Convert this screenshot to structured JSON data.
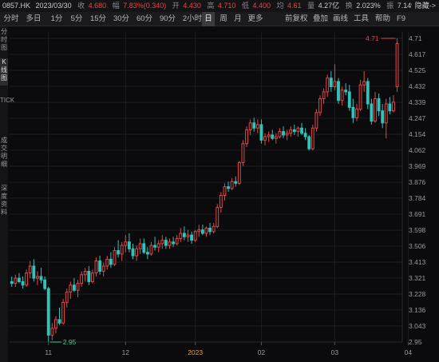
{
  "header": {
    "code": "0857.HK",
    "date": "2023/03/30",
    "close_label": "收",
    "close_value": "4.680",
    "change_label": "幅",
    "change_value": "7.83%(0.340)",
    "open_label": "开",
    "open_value": "4.430",
    "high_label": "高",
    "high_value": "4.710",
    "low_label": "低",
    "low_value": "4.400",
    "avg_label": "均",
    "avg_value": "4.61",
    "volume_label": "量",
    "volume_value": "4.27亿",
    "turnover_label": "换",
    "turnover_value": "2.023%",
    "amplitude_label": "振",
    "amplitude_value": "7.14%",
    "hide_label": "隐藏->"
  },
  "tabs": [
    "分时",
    "多日",
    "1分",
    "5分",
    "15分",
    "30分",
    "60分",
    "90分",
    "2小时",
    "日",
    "周",
    "月",
    "更多"
  ],
  "active_tab": "日",
  "tools": [
    "前复权",
    "叠加",
    "画线",
    "工具",
    "帮助",
    "F9"
  ],
  "sidebar": {
    "items": [
      "分时图",
      "K线图",
      "TICK",
      "成交明细",
      "深度资料"
    ]
  },
  "colors": {
    "up": "#e04848",
    "down": "#2fc4b9",
    "grid": "#1c1c20",
    "low_marker": "#3ecf8e"
  },
  "chart_data": {
    "type": "candlestick",
    "title": "",
    "xlabel": "",
    "ylabel": "",
    "ylim": [
      2.9,
      4.75
    ],
    "y_ticks": [
      "4.71",
      "4.617",
      "4.525",
      "4.432",
      "4.339",
      "4.247",
      "4.154",
      "4.062",
      "3.969",
      "3.876",
      "3.784",
      "3.691",
      "3.598",
      "3.506",
      "3.413",
      "3.321",
      "3.228",
      "3.136",
      "3.043",
      "2.95"
    ],
    "x_ticks": [
      {
        "label": "11",
        "index": 10
      },
      {
        "label": "12",
        "index": 31
      },
      {
        "label": "2023",
        "index": 50
      },
      {
        "label": "02",
        "index": 68
      },
      {
        "label": "03",
        "index": 88
      },
      {
        "label": "04",
        "index": 108
      }
    ],
    "annotations": [
      {
        "text": "4.71",
        "kind": "high"
      },
      {
        "text": "2.95",
        "kind": "low"
      }
    ],
    "series": [
      {
        "open": 3.3,
        "high": 3.33,
        "low": 3.27,
        "close": 3.29
      },
      {
        "open": 3.29,
        "high": 3.34,
        "low": 3.27,
        "close": 3.32
      },
      {
        "open": 3.32,
        "high": 3.35,
        "low": 3.29,
        "close": 3.3
      },
      {
        "open": 3.3,
        "high": 3.33,
        "low": 3.26,
        "close": 3.28
      },
      {
        "open": 3.28,
        "high": 3.37,
        "low": 3.27,
        "close": 3.35
      },
      {
        "open": 3.35,
        "high": 3.42,
        "low": 3.32,
        "close": 3.39
      },
      {
        "open": 3.39,
        "high": 3.43,
        "low": 3.3,
        "close": 3.32
      },
      {
        "open": 3.32,
        "high": 3.36,
        "low": 3.28,
        "close": 3.33
      },
      {
        "open": 3.33,
        "high": 3.38,
        "low": 3.29,
        "close": 3.31
      },
      {
        "open": 3.31,
        "high": 3.33,
        "low": 3.25,
        "close": 3.26
      },
      {
        "open": 3.26,
        "high": 3.27,
        "low": 2.95,
        "close": 2.99
      },
      {
        "open": 2.99,
        "high": 3.06,
        "low": 2.96,
        "close": 3.03
      },
      {
        "open": 3.03,
        "high": 3.1,
        "low": 3.0,
        "close": 3.08
      },
      {
        "open": 3.08,
        "high": 3.15,
        "low": 3.05,
        "close": 3.06
      },
      {
        "open": 3.06,
        "high": 3.2,
        "low": 3.05,
        "close": 3.18
      },
      {
        "open": 3.18,
        "high": 3.26,
        "low": 3.15,
        "close": 3.24
      },
      {
        "open": 3.24,
        "high": 3.3,
        "low": 3.2,
        "close": 3.28
      },
      {
        "open": 3.28,
        "high": 3.32,
        "low": 3.24,
        "close": 3.25
      },
      {
        "open": 3.25,
        "high": 3.31,
        "low": 3.21,
        "close": 3.29
      },
      {
        "open": 3.29,
        "high": 3.36,
        "low": 3.27,
        "close": 3.34
      },
      {
        "open": 3.34,
        "high": 3.38,
        "low": 3.3,
        "close": 3.36
      },
      {
        "open": 3.36,
        "high": 3.39,
        "low": 3.28,
        "close": 3.3
      },
      {
        "open": 3.3,
        "high": 3.37,
        "low": 3.29,
        "close": 3.35
      },
      {
        "open": 3.35,
        "high": 3.44,
        "low": 3.33,
        "close": 3.42
      },
      {
        "open": 3.42,
        "high": 3.45,
        "low": 3.34,
        "close": 3.36
      },
      {
        "open": 3.36,
        "high": 3.41,
        "low": 3.33,
        "close": 3.39
      },
      {
        "open": 3.39,
        "high": 3.45,
        "low": 3.37,
        "close": 3.43
      },
      {
        "open": 3.43,
        "high": 3.47,
        "low": 3.38,
        "close": 3.4
      },
      {
        "open": 3.4,
        "high": 3.5,
        "low": 3.39,
        "close": 3.48
      },
      {
        "open": 3.48,
        "high": 3.54,
        "low": 3.44,
        "close": 3.46
      },
      {
        "open": 3.46,
        "high": 3.53,
        "low": 3.42,
        "close": 3.51
      },
      {
        "open": 3.51,
        "high": 3.57,
        "low": 3.47,
        "close": 3.53
      },
      {
        "open": 3.53,
        "high": 3.58,
        "low": 3.47,
        "close": 3.49
      },
      {
        "open": 3.49,
        "high": 3.52,
        "low": 3.43,
        "close": 3.45
      },
      {
        "open": 3.45,
        "high": 3.51,
        "low": 3.42,
        "close": 3.49
      },
      {
        "open": 3.49,
        "high": 3.55,
        "low": 3.46,
        "close": 3.52
      },
      {
        "open": 3.52,
        "high": 3.55,
        "low": 3.46,
        "close": 3.47
      },
      {
        "open": 3.47,
        "high": 3.5,
        "low": 3.43,
        "close": 3.46
      },
      {
        "open": 3.46,
        "high": 3.53,
        "low": 3.45,
        "close": 3.51
      },
      {
        "open": 3.51,
        "high": 3.56,
        "low": 3.48,
        "close": 3.5
      },
      {
        "open": 3.5,
        "high": 3.54,
        "low": 3.47,
        "close": 3.52
      },
      {
        "open": 3.52,
        "high": 3.57,
        "low": 3.49,
        "close": 3.54
      },
      {
        "open": 3.54,
        "high": 3.56,
        "low": 3.49,
        "close": 3.51
      },
      {
        "open": 3.51,
        "high": 3.55,
        "low": 3.49,
        "close": 3.53
      },
      {
        "open": 3.53,
        "high": 3.56,
        "low": 3.5,
        "close": 3.52
      },
      {
        "open": 3.52,
        "high": 3.57,
        "low": 3.51,
        "close": 3.55
      },
      {
        "open": 3.55,
        "high": 3.61,
        "low": 3.53,
        "close": 3.58
      },
      {
        "open": 3.58,
        "high": 3.62,
        "low": 3.54,
        "close": 3.56
      },
      {
        "open": 3.56,
        "high": 3.6,
        "low": 3.53,
        "close": 3.57
      },
      {
        "open": 3.57,
        "high": 3.59,
        "low": 3.52,
        "close": 3.54
      },
      {
        "open": 3.54,
        "high": 3.6,
        "low": 3.53,
        "close": 3.59
      },
      {
        "open": 3.59,
        "high": 3.63,
        "low": 3.56,
        "close": 3.6
      },
      {
        "open": 3.6,
        "high": 3.63,
        "low": 3.57,
        "close": 3.58
      },
      {
        "open": 3.58,
        "high": 3.62,
        "low": 3.56,
        "close": 3.61
      },
      {
        "open": 3.61,
        "high": 3.64,
        "low": 3.57,
        "close": 3.59
      },
      {
        "open": 3.59,
        "high": 3.64,
        "low": 3.58,
        "close": 3.62
      },
      {
        "open": 3.62,
        "high": 3.75,
        "low": 3.61,
        "close": 3.73
      },
      {
        "open": 3.73,
        "high": 3.82,
        "low": 3.7,
        "close": 3.8
      },
      {
        "open": 3.8,
        "high": 3.87,
        "low": 3.77,
        "close": 3.85
      },
      {
        "open": 3.85,
        "high": 3.88,
        "low": 3.82,
        "close": 3.84
      },
      {
        "open": 3.84,
        "high": 3.9,
        "low": 3.83,
        "close": 3.88
      },
      {
        "open": 3.88,
        "high": 3.91,
        "low": 3.85,
        "close": 3.87
      },
      {
        "open": 3.87,
        "high": 4.0,
        "low": 3.86,
        "close": 3.99
      },
      {
        "open": 3.99,
        "high": 4.12,
        "low": 3.97,
        "close": 4.1
      },
      {
        "open": 4.1,
        "high": 4.2,
        "low": 4.08,
        "close": 4.18
      },
      {
        "open": 4.18,
        "high": 4.24,
        "low": 4.15,
        "close": 4.22
      },
      {
        "open": 4.22,
        "high": 4.25,
        "low": 4.17,
        "close": 4.19
      },
      {
        "open": 4.19,
        "high": 4.24,
        "low": 4.16,
        "close": 4.21
      },
      {
        "open": 4.21,
        "high": 4.24,
        "low": 4.1,
        "close": 4.12
      },
      {
        "open": 4.12,
        "high": 4.16,
        "low": 4.09,
        "close": 4.14
      },
      {
        "open": 4.14,
        "high": 4.17,
        "low": 4.11,
        "close": 4.15
      },
      {
        "open": 4.15,
        "high": 4.18,
        "low": 4.12,
        "close": 4.13
      },
      {
        "open": 4.13,
        "high": 4.16,
        "low": 4.1,
        "close": 4.14
      },
      {
        "open": 4.14,
        "high": 4.19,
        "low": 4.13,
        "close": 4.17
      },
      {
        "open": 4.17,
        "high": 4.2,
        "low": 4.13,
        "close": 4.15
      },
      {
        "open": 4.15,
        "high": 4.18,
        "low": 4.12,
        "close": 4.16
      },
      {
        "open": 4.16,
        "high": 4.2,
        "low": 4.14,
        "close": 4.18
      },
      {
        "open": 4.18,
        "high": 4.21,
        "low": 4.15,
        "close": 4.17
      },
      {
        "open": 4.17,
        "high": 4.2,
        "low": 4.14,
        "close": 4.19
      },
      {
        "open": 4.19,
        "high": 4.22,
        "low": 4.15,
        "close": 4.16
      },
      {
        "open": 4.16,
        "high": 4.19,
        "low": 4.12,
        "close": 4.14
      },
      {
        "open": 4.14,
        "high": 4.15,
        "low": 4.06,
        "close": 4.07
      },
      {
        "open": 4.07,
        "high": 4.21,
        "low": 4.06,
        "close": 4.19
      },
      {
        "open": 4.19,
        "high": 4.3,
        "low": 4.17,
        "close": 4.28
      },
      {
        "open": 4.28,
        "high": 4.38,
        "low": 4.26,
        "close": 4.36
      },
      {
        "open": 4.36,
        "high": 4.42,
        "low": 4.33,
        "close": 4.4
      },
      {
        "open": 4.4,
        "high": 4.5,
        "low": 4.37,
        "close": 4.48
      },
      {
        "open": 4.48,
        "high": 4.52,
        "low": 4.4,
        "close": 4.43
      },
      {
        "open": 4.43,
        "high": 4.56,
        "low": 4.41,
        "close": 4.46
      },
      {
        "open": 4.46,
        "high": 4.48,
        "low": 4.33,
        "close": 4.35
      },
      {
        "open": 4.35,
        "high": 4.43,
        "low": 4.32,
        "close": 4.41
      },
      {
        "open": 4.41,
        "high": 4.45,
        "low": 4.38,
        "close": 4.4
      },
      {
        "open": 4.4,
        "high": 4.44,
        "low": 4.29,
        "close": 4.31
      },
      {
        "open": 4.31,
        "high": 4.36,
        "low": 4.22,
        "close": 4.25
      },
      {
        "open": 4.25,
        "high": 4.33,
        "low": 4.23,
        "close": 4.3
      },
      {
        "open": 4.3,
        "high": 4.47,
        "low": 4.29,
        "close": 4.44
      },
      {
        "open": 4.44,
        "high": 4.52,
        "low": 4.4,
        "close": 4.46
      },
      {
        "open": 4.46,
        "high": 4.48,
        "low": 4.3,
        "close": 4.33
      },
      {
        "open": 4.33,
        "high": 4.36,
        "low": 4.21,
        "close": 4.23
      },
      {
        "open": 4.23,
        "high": 4.4,
        "low": 4.22,
        "close": 4.36
      },
      {
        "open": 4.36,
        "high": 4.39,
        "low": 4.26,
        "close": 4.29
      },
      {
        "open": 4.29,
        "high": 4.33,
        "low": 4.19,
        "close": 4.22
      },
      {
        "open": 4.22,
        "high": 4.36,
        "low": 4.13,
        "close": 4.33
      },
      {
        "open": 4.33,
        "high": 4.37,
        "low": 4.27,
        "close": 4.29
      },
      {
        "open": 4.29,
        "high": 4.38,
        "low": 4.28,
        "close": 4.34
      },
      {
        "open": 4.43,
        "high": 4.71,
        "low": 4.4,
        "close": 4.68
      }
    ]
  }
}
